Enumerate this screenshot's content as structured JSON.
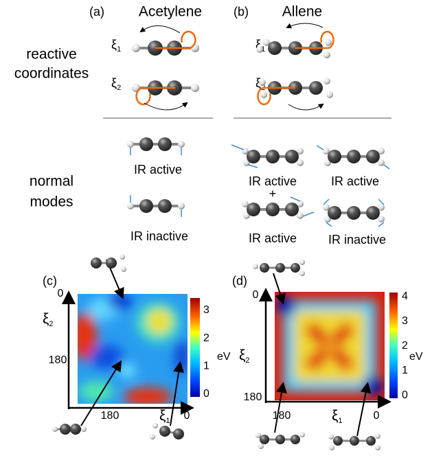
{
  "panel_a": {
    "label": "(a)",
    "title": "Acetylene",
    "modes": [
      "IR active",
      "IR inactive"
    ]
  },
  "panel_b": {
    "label": "(b)",
    "title": "Allene",
    "modes": [
      "IR active",
      "+",
      "IR active",
      "IR active",
      "IR inactive"
    ]
  },
  "row_labels": {
    "reactive": [
      "reactive",
      "coordinates"
    ],
    "normal": [
      "normal",
      "modes"
    ]
  },
  "coordinate": {
    "symbol": "ξ",
    "sub1": "1",
    "sub2": "2"
  },
  "panel_c": {
    "label": "(c)",
    "axis_ticks": [
      "0",
      "180"
    ],
    "colorbar_ticks": [
      0,
      1,
      2,
      3
    ],
    "unit": "eV"
  },
  "panel_d": {
    "label": "(d)",
    "axis_ticks": [
      "0",
      "180"
    ],
    "colorbar_ticks": [
      0,
      1,
      2,
      3,
      4
    ],
    "unit": "eV"
  }
}
